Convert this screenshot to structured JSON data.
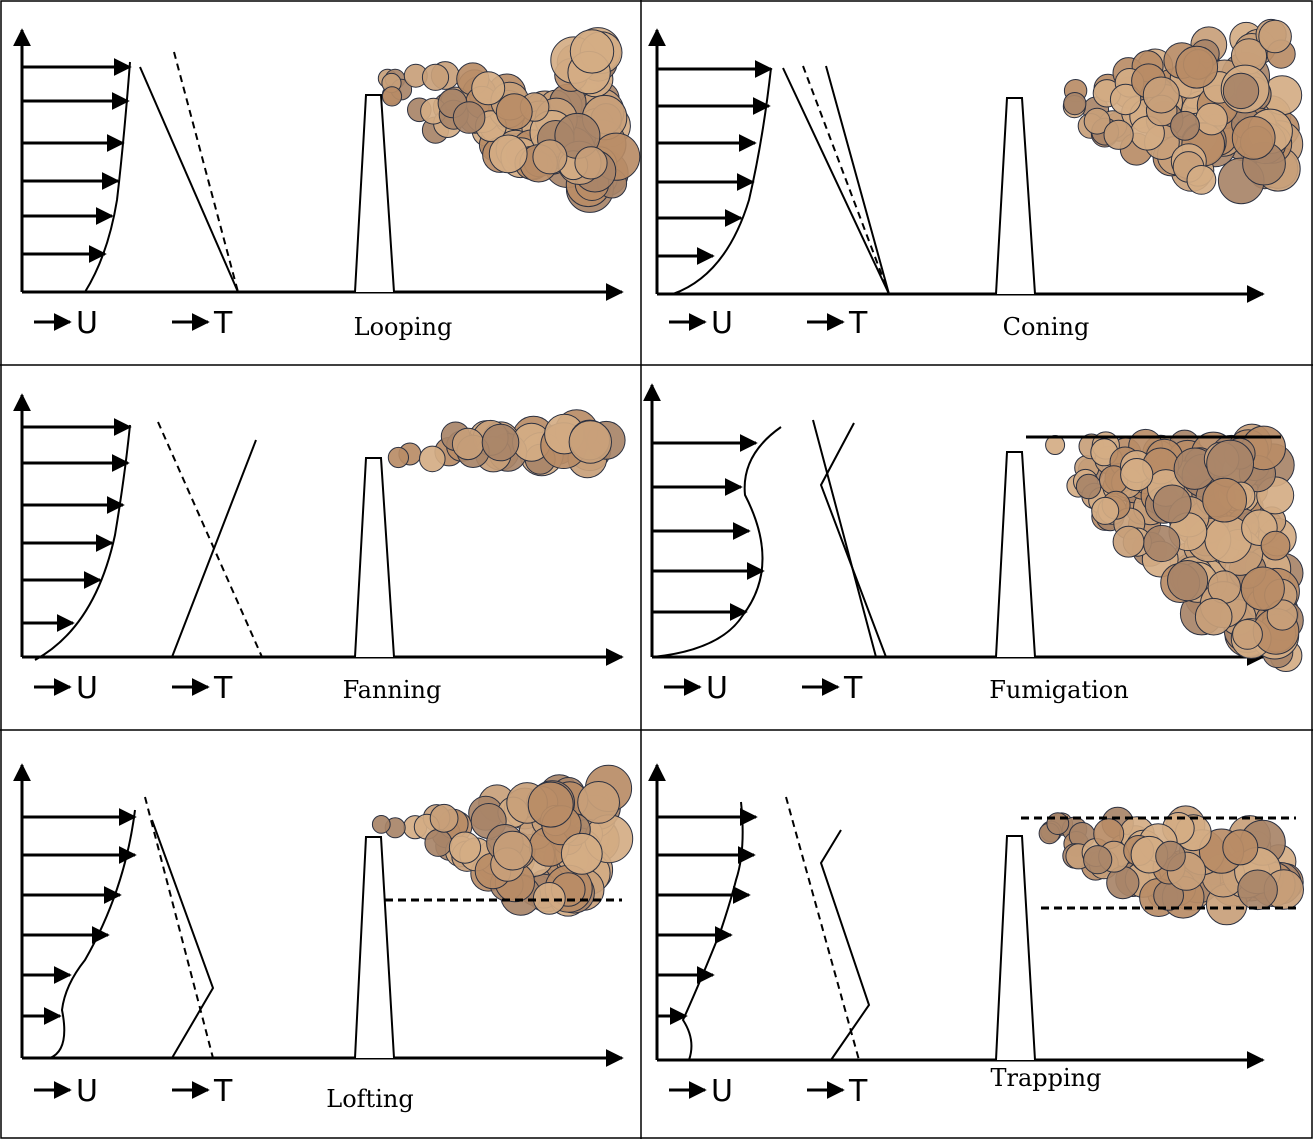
{
  "panels": [
    {
      "title": "Looping",
      "u_label": "U",
      "t_label": "T"
    },
    {
      "title": "Coning",
      "u_label": "U",
      "t_label": "T"
    },
    {
      "title": "Fanning",
      "u_label": "U",
      "t_label": "T"
    },
    {
      "title": "Fumigation",
      "u_label": "U",
      "t_label": "T"
    },
    {
      "title": "Lofting",
      "u_label": "U",
      "t_label": "T"
    },
    {
      "title": "Trapping",
      "u_label": "U",
      "t_label": "T"
    }
  ]
}
